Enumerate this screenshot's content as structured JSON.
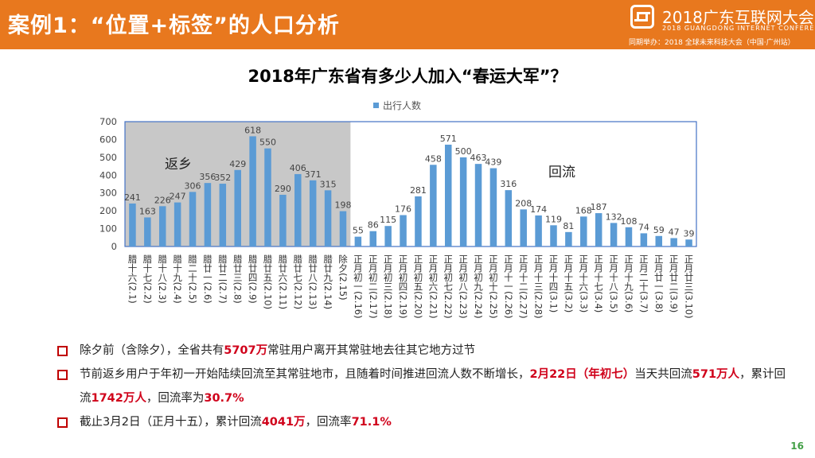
{
  "header": {
    "title": "案例1：“位置+标签”的人口分析",
    "logo_main": "2018广东互联网大会",
    "logo_sub": "2018 GUANGDONG INTERNET CONFERENCE",
    "logo_note": "同期举办：2018 全球未来科技大会（中国·广州站）"
  },
  "chart_data": {
    "type": "bar",
    "title": "2018年广东省有多少人加入“春运大军”？",
    "legend": "出行人数",
    "legend_position": "top",
    "ylim": [
      0,
      700
    ],
    "yticks": [
      0,
      100,
      200,
      300,
      400,
      500,
      600,
      700
    ],
    "grid": false,
    "annotations": {
      "left": "返乡",
      "right": "回流"
    },
    "categories": [
      "腊十六(2.1)",
      "腊十七(2.2)",
      "腊十八(2.3)",
      "腊十九(2.4)",
      "腊二十(2.5)",
      "腊廿一(2.6)",
      "腊廿二(2.7)",
      "腊廿三(2.8)",
      "腊廿四(2.9)",
      "腊廿五(2.10)",
      "腊廿六(2.11)",
      "腊廿七(2.12)",
      "腊廿八(2.13)",
      "腊廿九(2.14)",
      "除夕(2.15)",
      "正月初一(2.16)",
      "正月初二(2.17)",
      "正月初三(2.18)",
      "正月初四(2.19)",
      "正月初五(2.20)",
      "正月初六(2.21)",
      "正月初七(2.22)",
      "正月初八(2.23)",
      "正月初九(2.24)",
      "正月初十(2.25)",
      "正月十一(2.26)",
      "正月十二(2.27)",
      "正月十三(2.28)",
      "正月十四(3.1)",
      "正月十五(3.2)",
      "正月十六(3.3)",
      "正月十七(3.4)",
      "正月十八(3.5)",
      "正月十九(3.6)",
      "正月二十(3.7)",
      "正月廿一(3.8)",
      "正月廿二(3.9)",
      "正月廿三(3.10)"
    ],
    "values": [
      241,
      163,
      226,
      247,
      306,
      356,
      352,
      429,
      618,
      550,
      290,
      406,
      371,
      315,
      198,
      55,
      86,
      115,
      176,
      281,
      458,
      571,
      500,
      463,
      439,
      316,
      208,
      174,
      119,
      81,
      168,
      187,
      132,
      108,
      74,
      59,
      47,
      39
    ],
    "colors": {
      "bar": "#5b9bd5",
      "left_panel": "#c8c8c8",
      "right_panel": "#ffffff",
      "border": "#4472c4"
    }
  },
  "bullets": [
    [
      {
        "t": "除夕前（含除夕），全省共有",
        "hl": false
      },
      {
        "t": "5707万",
        "hl": true
      },
      {
        "t": "常驻用户离开其常驻地去往其它地方过节",
        "hl": false
      }
    ],
    [
      {
        "t": "节前返乡用户于年初一开始陆续回流至其常驻地市，且随着时间推进回流人数不断增长，",
        "hl": false
      },
      {
        "t": "2月22日（年初七）",
        "hl": true
      },
      {
        "t": "当天共回流",
        "hl": false
      },
      {
        "t": "571万人",
        "hl": true
      },
      {
        "t": "，累计回流",
        "hl": false
      },
      {
        "t": "1742万人",
        "hl": true
      },
      {
        "t": "，回流率为",
        "hl": false
      },
      {
        "t": "30.7%",
        "hl": true
      }
    ],
    [
      {
        "t": "截止3月2日（正月十五），累计回流",
        "hl": false
      },
      {
        "t": "4041万",
        "hl": true
      },
      {
        "t": "，回流率",
        "hl": false
      },
      {
        "t": "71.1%",
        "hl": true
      }
    ]
  ],
  "page_number": "16"
}
